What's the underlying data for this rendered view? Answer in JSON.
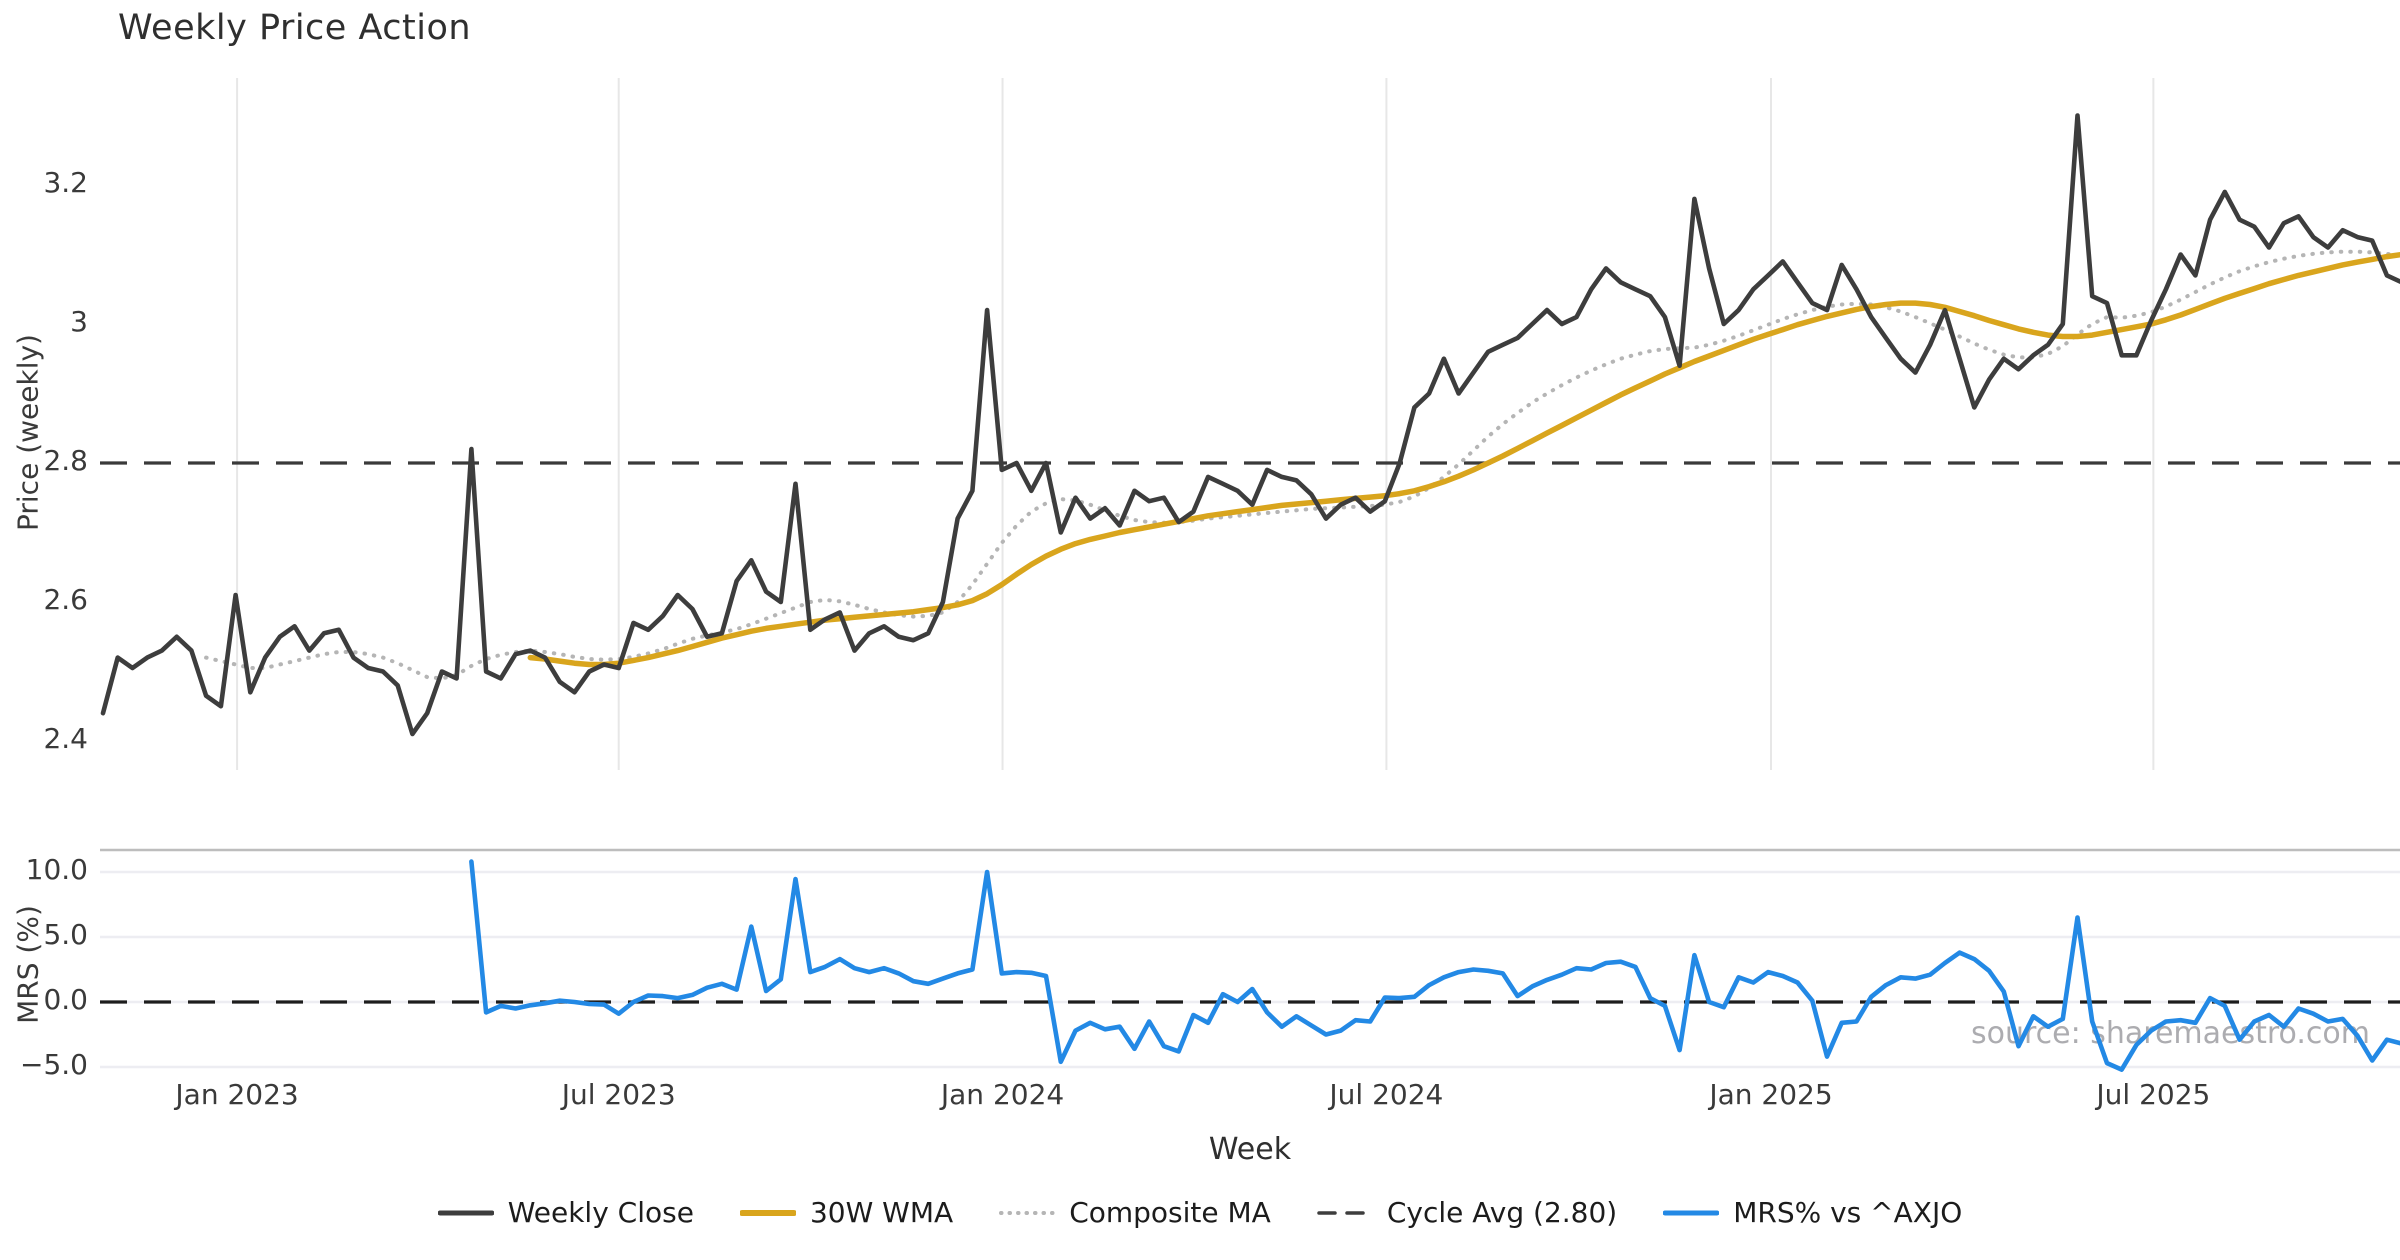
{
  "title": "Weekly Price Action",
  "xlabel": "Week",
  "watermark": "source: sharemaestro.com",
  "price_panel": {
    "ylabel": "Price (weekly)",
    "yticks": [
      {
        "v": 3.2,
        "label": "3.2"
      },
      {
        "v": 3.0,
        "label": "3"
      },
      {
        "v": 2.8,
        "label": "2.8"
      },
      {
        "v": 2.6,
        "label": "2.6"
      },
      {
        "v": 2.4,
        "label": "2.4"
      }
    ],
    "cycle_avg": 2.8
  },
  "mrs_panel": {
    "ylabel": "MRS (%)",
    "yticks": [
      {
        "v": 10.0,
        "label": "10.0"
      },
      {
        "v": 5.0,
        "label": "5.0"
      },
      {
        "v": 0.0,
        "label": "0.0"
      },
      {
        "v": -5.0,
        "label": "−5.0"
      }
    ],
    "zero_line": 0.0
  },
  "xticks": [
    {
      "index": 9.1,
      "label": "Jan 2023"
    },
    {
      "index": 35.0,
      "label": "Jul 2023"
    },
    {
      "index": 61.05,
      "label": "Jan 2024"
    },
    {
      "index": 87.1,
      "label": "Jul 2024"
    },
    {
      "index": 113.2,
      "label": "Jan 2025"
    },
    {
      "index": 139.15,
      "label": "Jul 2025"
    }
  ],
  "legend": [
    {
      "label": "Weekly Close",
      "color": "#3d3d3d",
      "style": "solid",
      "width": 5
    },
    {
      "label": "30W WMA",
      "color": "#d9a51d",
      "style": "solid",
      "width": 6
    },
    {
      "label": "Composite MA",
      "color": "#b5b5b5",
      "style": "dotted",
      "width": 4
    },
    {
      "label": "Cycle Avg (2.80)",
      "color": "#3d3d3d",
      "style": "dashed",
      "width": 3.5
    },
    {
      "label": "MRS% vs ^AXJO",
      "color": "#2389e5",
      "style": "solid",
      "width": 5
    }
  ],
  "colors": {
    "close": "#3d3d3d",
    "wma": "#d9a51d",
    "composite": "#b5b5b5",
    "cycle_dash": "#3a3a3a",
    "mrs": "#2389e5",
    "grid_vertical": "#e7e7e7",
    "grid_mrs": "#ededf2",
    "mrs_top_border": "#bdbdbd",
    "tick_text": "#3a3a3a"
  },
  "chart_data": {
    "type": "line",
    "x_description": "weekly index, week 0 ≈ late Oct 2022, ~157 weeks through late Oct 2025",
    "price_ylim": [
      2.31,
      3.34
    ],
    "mrs_ylim": [
      -6.2,
      11.6
    ],
    "grid": {
      "price_panel": "vertical only",
      "mrs_panel": "horizontal only"
    },
    "legend_position": "bottom center",
    "series": [
      {
        "name": "Weekly Close",
        "panel": "price",
        "values": [
          2.44,
          2.52,
          2.505,
          2.52,
          2.53,
          2.55,
          2.53,
          2.465,
          2.45,
          2.61,
          2.47,
          2.52,
          2.55,
          2.565,
          2.53,
          2.555,
          2.56,
          2.52,
          2.505,
          2.5,
          2.48,
          2.41,
          2.44,
          2.5,
          2.49,
          2.82,
          2.5,
          2.49,
          2.525,
          2.53,
          2.52,
          2.485,
          2.47,
          2.5,
          2.51,
          2.505,
          2.57,
          2.56,
          2.58,
          2.61,
          2.59,
          2.55,
          2.555,
          2.63,
          2.66,
          2.615,
          2.6,
          2.77,
          2.56,
          2.575,
          2.585,
          2.53,
          2.555,
          2.565,
          2.55,
          2.545,
          2.555,
          2.6,
          2.72,
          2.76,
          3.02,
          2.79,
          2.8,
          2.76,
          2.8,
          2.7,
          2.75,
          2.72,
          2.735,
          2.71,
          2.76,
          2.745,
          2.75,
          2.715,
          2.73,
          2.78,
          2.77,
          2.76,
          2.74,
          2.79,
          2.78,
          2.775,
          2.755,
          2.72,
          2.74,
          2.75,
          2.73,
          2.745,
          2.8,
          2.88,
          2.9,
          2.95,
          2.9,
          2.93,
          2.96,
          2.97,
          2.98,
          3.0,
          3.02,
          3.0,
          3.01,
          3.05,
          3.08,
          3.06,
          3.05,
          3.04,
          3.01,
          2.94,
          3.18,
          3.08,
          3.0,
          3.02,
          3.05,
          3.07,
          3.09,
          3.06,
          3.03,
          3.02,
          3.085,
          3.05,
          3.01,
          2.98,
          2.95,
          2.93,
          2.97,
          3.02,
          2.95,
          2.88,
          2.92,
          2.95,
          2.935,
          2.955,
          2.97,
          3.0,
          3.3,
          3.04,
          3.03,
          2.955,
          2.955,
          3.005,
          3.05,
          3.1,
          3.07,
          3.15,
          3.19,
          3.15,
          3.14,
          3.11,
          3.145,
          3.155,
          3.125,
          3.11,
          3.135,
          3.125,
          3.12,
          3.07,
          3.06
        ]
      },
      {
        "name": "30W WMA",
        "panel": "price",
        "values": [
          null,
          null,
          null,
          null,
          null,
          null,
          null,
          null,
          null,
          null,
          null,
          null,
          null,
          null,
          null,
          null,
          null,
          null,
          null,
          null,
          null,
          null,
          null,
          null,
          null,
          null,
          null,
          null,
          null,
          2.52,
          2.518,
          2.515,
          2.512,
          2.51,
          2.51,
          2.512,
          2.516,
          2.52,
          2.525,
          2.53,
          2.536,
          2.542,
          2.548,
          2.553,
          2.558,
          2.562,
          2.565,
          2.568,
          2.571,
          2.574,
          2.576,
          2.578,
          2.58,
          2.582,
          2.584,
          2.586,
          2.589,
          2.592,
          2.596,
          2.602,
          2.612,
          2.625,
          2.64,
          2.654,
          2.666,
          2.676,
          2.684,
          2.69,
          2.695,
          2.7,
          2.704,
          2.708,
          2.712,
          2.716,
          2.72,
          2.724,
          2.727,
          2.73,
          2.733,
          2.736,
          2.739,
          2.741,
          2.743,
          2.745,
          2.747,
          2.749,
          2.751,
          2.753,
          2.756,
          2.76,
          2.766,
          2.773,
          2.781,
          2.79,
          2.8,
          2.81,
          2.821,
          2.832,
          2.843,
          2.854,
          2.865,
          2.876,
          2.887,
          2.898,
          2.908,
          2.918,
          2.928,
          2.937,
          2.946,
          2.954,
          2.962,
          2.97,
          2.978,
          2.985,
          2.992,
          2.999,
          3.005,
          3.011,
          3.016,
          3.021,
          3.025,
          3.028,
          3.03,
          3.03,
          3.028,
          3.024,
          3.018,
          3.012,
          3.005,
          2.999,
          2.993,
          2.988,
          2.984,
          2.982,
          2.982,
          2.984,
          2.988,
          2.992,
          2.996,
          3.0,
          3.006,
          3.013,
          3.021,
          3.029,
          3.037,
          3.044,
          3.051,
          3.058,
          3.064,
          3.07,
          3.075,
          3.08,
          3.085,
          3.089,
          3.093,
          3.097,
          3.1
        ]
      },
      {
        "name": "Composite MA",
        "panel": "price",
        "values": [
          null,
          null,
          null,
          null,
          null,
          null,
          null,
          2.52,
          2.515,
          2.51,
          2.505,
          2.505,
          2.51,
          2.515,
          2.52,
          2.525,
          2.528,
          2.528,
          2.525,
          2.52,
          2.512,
          2.502,
          2.492,
          2.49,
          2.495,
          2.508,
          2.518,
          2.524,
          2.528,
          2.53,
          2.528,
          2.525,
          2.521,
          2.518,
          2.517,
          2.518,
          2.521,
          2.526,
          2.532,
          2.54,
          2.547,
          2.552,
          2.556,
          2.561,
          2.568,
          2.576,
          2.584,
          2.592,
          2.6,
          2.603,
          2.601,
          2.596,
          2.59,
          2.585,
          2.581,
          2.579,
          2.58,
          2.585,
          2.6,
          2.625,
          2.655,
          2.685,
          2.71,
          2.73,
          2.742,
          2.748,
          2.746,
          2.74,
          2.732,
          2.724,
          2.718,
          2.715,
          2.714,
          2.715,
          2.717,
          2.72,
          2.722,
          2.724,
          2.726,
          2.728,
          2.73,
          2.732,
          2.734,
          2.735,
          2.736,
          2.737,
          2.738,
          2.74,
          2.744,
          2.752,
          2.764,
          2.78,
          2.798,
          2.818,
          2.838,
          2.856,
          2.872,
          2.887,
          2.9,
          2.912,
          2.923,
          2.933,
          2.942,
          2.95,
          2.956,
          2.961,
          2.964,
          2.965,
          2.966,
          2.97,
          2.976,
          2.983,
          2.991,
          2.999,
          3.007,
          3.014,
          3.02,
          3.025,
          3.028,
          3.029,
          3.028,
          3.024,
          3.018,
          3.01,
          3.001,
          2.992,
          2.982,
          2.972,
          2.963,
          2.956,
          2.952,
          2.952,
          2.957,
          2.968,
          2.985,
          3.0,
          3.01,
          3.009,
          3.012,
          3.017,
          3.025,
          3.035,
          3.046,
          3.057,
          3.067,
          3.076,
          3.083,
          3.089,
          3.094,
          3.098,
          3.101,
          3.103,
          3.104,
          3.104,
          3.103,
          3.101,
          3.098
        ]
      },
      {
        "name": "MRS% vs ^AXJO",
        "panel": "mrs",
        "values": [
          null,
          null,
          null,
          null,
          null,
          null,
          null,
          null,
          null,
          null,
          null,
          null,
          null,
          null,
          null,
          null,
          null,
          null,
          null,
          null,
          null,
          null,
          null,
          null,
          null,
          10.8,
          -0.8,
          -0.3,
          -0.5,
          -0.25,
          -0.1,
          0.1,
          0.0,
          -0.15,
          -0.2,
          -0.9,
          0.0,
          0.5,
          0.45,
          0.3,
          0.55,
          1.1,
          1.4,
          0.95,
          5.8,
          0.85,
          1.75,
          9.45,
          2.3,
          2.7,
          3.3,
          2.6,
          2.3,
          2.6,
          2.2,
          1.6,
          1.4,
          1.8,
          2.2,
          2.5,
          10.0,
          2.2,
          2.3,
          2.25,
          2.0,
          -4.6,
          -2.2,
          -1.6,
          -2.1,
          -1.9,
          -3.6,
          -1.5,
          -3.4,
          -3.8,
          -1.0,
          -1.6,
          0.6,
          0.0,
          1.0,
          -0.8,
          -1.9,
          -1.1,
          -1.8,
          -2.5,
          -2.2,
          -1.4,
          -1.5,
          0.35,
          0.3,
          0.4,
          1.3,
          1.9,
          2.3,
          2.5,
          2.4,
          2.2,
          0.45,
          1.2,
          1.7,
          2.1,
          2.6,
          2.5,
          3.0,
          3.1,
          2.7,
          0.3,
          -0.3,
          -3.7,
          3.6,
          0.0,
          -0.4,
          1.9,
          1.5,
          2.3,
          2.0,
          1.5,
          0.1,
          -4.2,
          -1.6,
          -1.5,
          0.4,
          1.3,
          1.9,
          1.8,
          2.1,
          3.0,
          3.8,
          3.3,
          2.4,
          0.8,
          -3.4,
          -1.1,
          -1.9,
          -1.3,
          6.5,
          -1.5,
          -4.7,
          -5.2,
          -3.3,
          -2.2,
          -1.5,
          -1.4,
          -1.6,
          0.3,
          -0.3,
          -2.9,
          -1.5,
          -1.0,
          -1.9,
          -0.5,
          -0.9,
          -1.5,
          -1.3,
          -2.6,
          -4.5,
          -2.9,
          -3.2
        ]
      }
    ]
  }
}
